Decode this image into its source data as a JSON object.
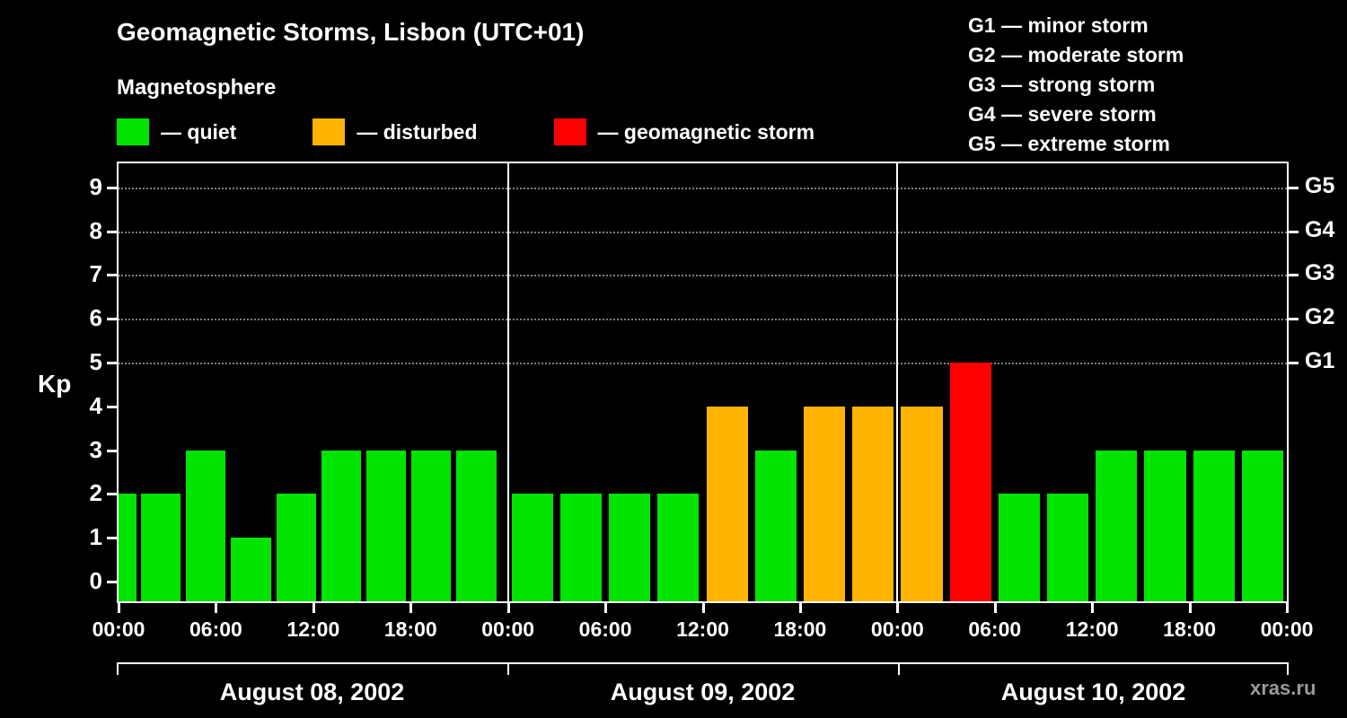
{
  "header": {
    "title": "Geomagnetic Storms, Lisbon (UTC+01)",
    "subtitle": "Magnetosphere"
  },
  "legend": {
    "items": [
      {
        "key": "quiet",
        "label": "— quiet"
      },
      {
        "key": "disturbed",
        "label": "— disturbed"
      },
      {
        "key": "storm",
        "label": "— geomagnetic storm"
      }
    ]
  },
  "g_scale_legend": {
    "items": [
      {
        "label": "G1 — minor storm"
      },
      {
        "label": "G2 — moderate storm"
      },
      {
        "label": "G3 — strong storm"
      },
      {
        "label": "G4 — severe storm"
      },
      {
        "label": "G5 — extreme storm"
      }
    ]
  },
  "axes": {
    "y_label": "Kp",
    "y_ticks": [
      0,
      1,
      2,
      3,
      4,
      5,
      6,
      7,
      8,
      9
    ],
    "right_ticks": [
      {
        "kp": 5,
        "label": "G1"
      },
      {
        "kp": 6,
        "label": "G2"
      },
      {
        "kp": 7,
        "label": "G3"
      },
      {
        "kp": 8,
        "label": "G4"
      },
      {
        "kp": 9,
        "label": "G5"
      }
    ],
    "x_ticks": [
      "00:00",
      "06:00",
      "12:00",
      "18:00",
      "00:00",
      "06:00",
      "12:00",
      "18:00",
      "00:00",
      "06:00",
      "12:00",
      "18:00",
      "00:00"
    ]
  },
  "chart_data": {
    "type": "bar",
    "title": "Geomagnetic Storms, Lisbon (UTC+01)",
    "ylabel": "Kp",
    "ylim": [
      0,
      9
    ],
    "interval_hours": 3,
    "thresholds": {
      "quiet_max": 3,
      "storm_min": 5
    },
    "leading_partial": {
      "value": 2
    },
    "days": [
      {
        "date": "August 08, 2002",
        "values": [
          2,
          3,
          1,
          2,
          3,
          3,
          3,
          3
        ]
      },
      {
        "date": "August 09, 2002",
        "values": [
          2,
          2,
          2,
          2,
          4,
          3,
          4,
          4
        ]
      },
      {
        "date": "August 10, 2002",
        "values": [
          4,
          5,
          2,
          2,
          3,
          3,
          3,
          3
        ]
      }
    ]
  },
  "colors": {
    "background": "#000000",
    "axis": "#ffffff",
    "grid": "#7d7d7d",
    "quiet": "#00e400",
    "disturbed": "#ffb400",
    "storm": "#ff0000"
  },
  "watermark": "xras.ru"
}
